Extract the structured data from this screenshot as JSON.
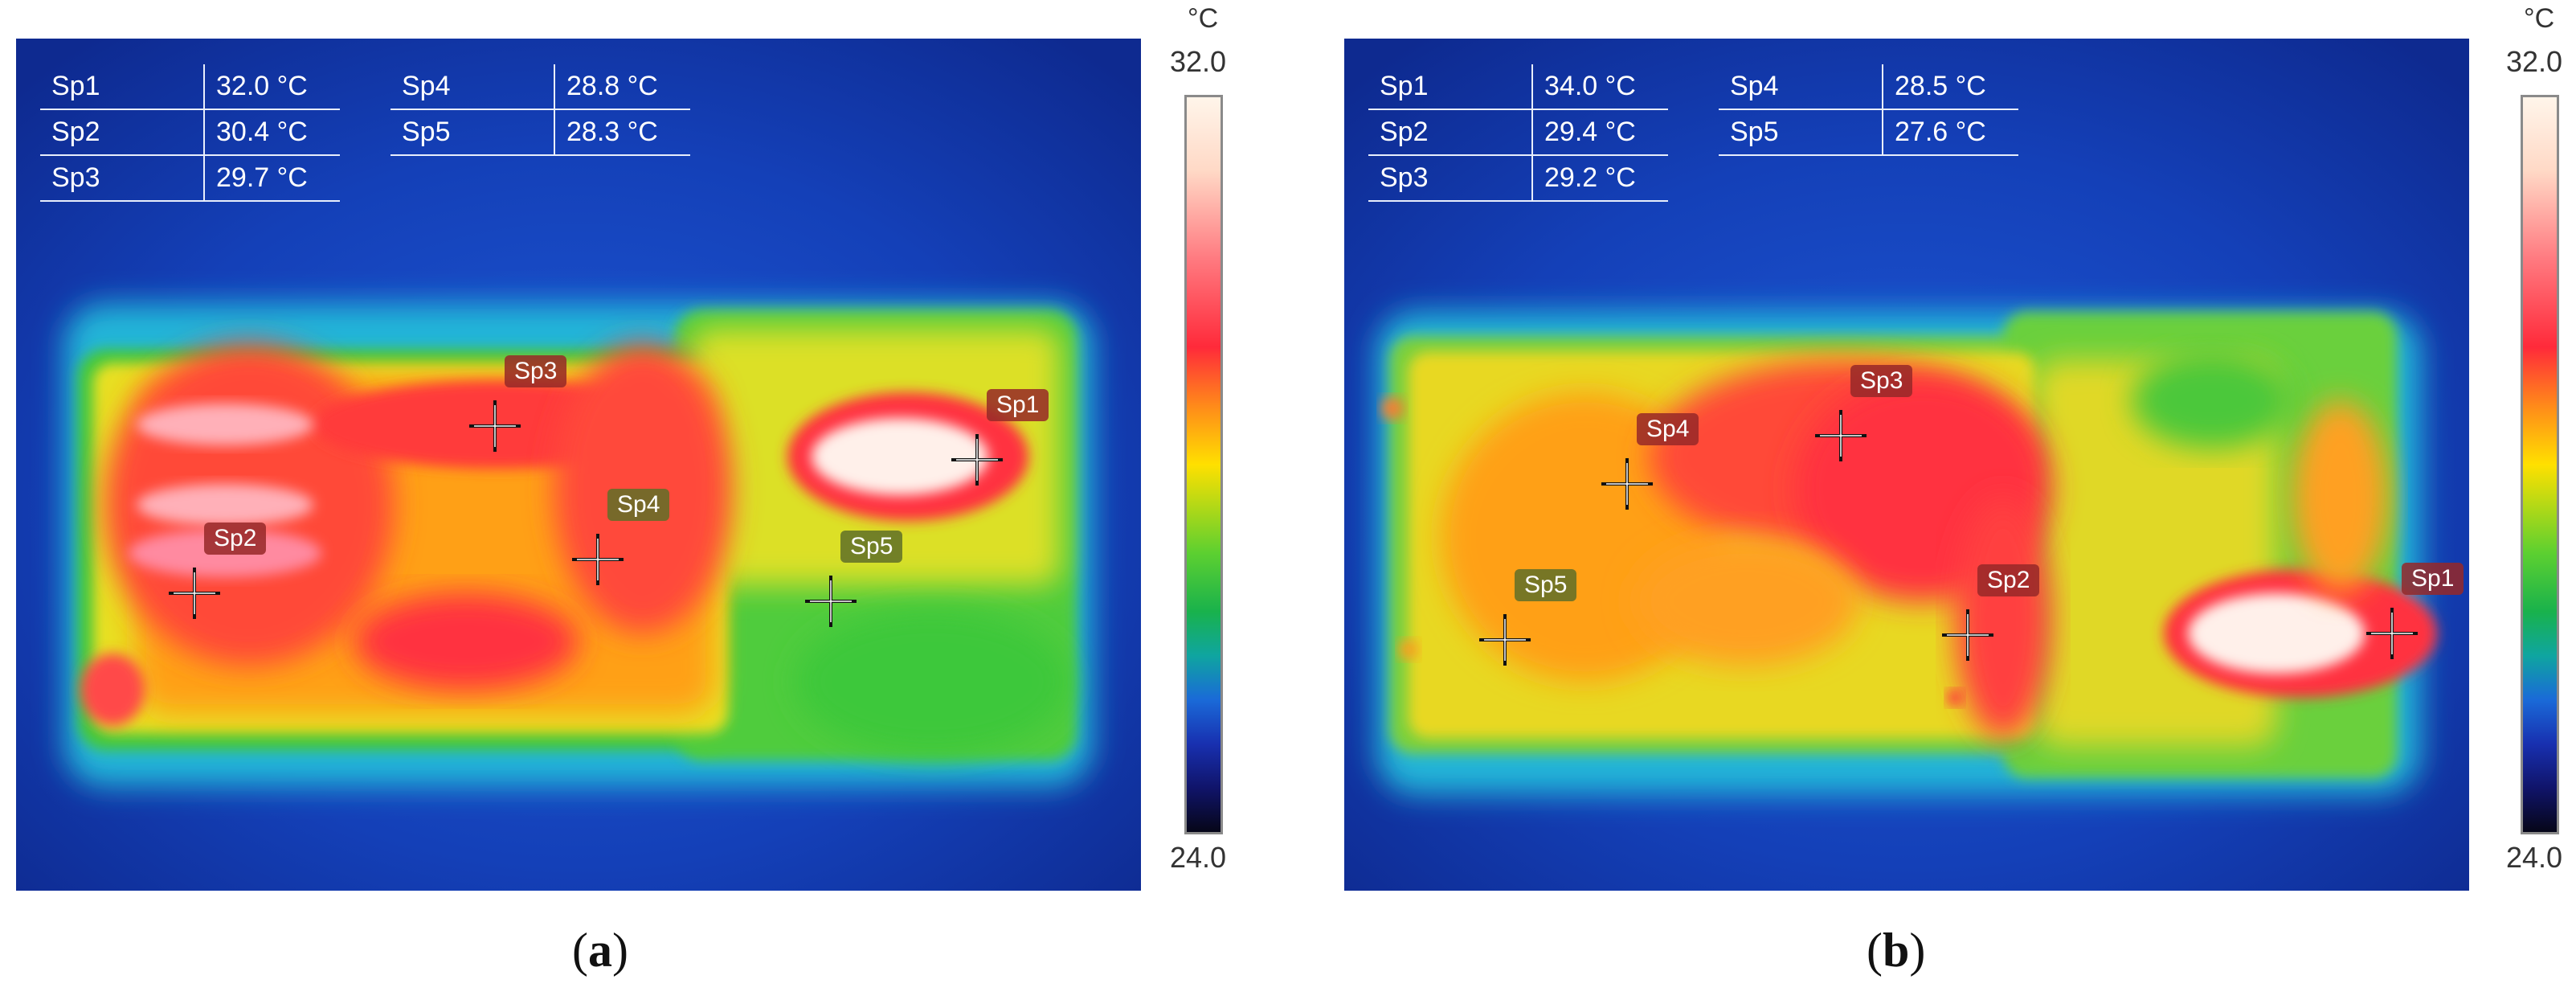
{
  "panels": [
    {
      "id": "a",
      "caption_letter": "a",
      "spots_left": [
        {
          "name": "Sp1",
          "value": "32.0 °C"
        },
        {
          "name": "Sp2",
          "value": "30.4 °C"
        },
        {
          "name": "Sp3",
          "value": "29.7 °C"
        }
      ],
      "spots_right": [
        {
          "name": "Sp4",
          "value": "28.8 °C"
        },
        {
          "name": "Sp5",
          "value": "28.3 °C"
        }
      ],
      "scale": {
        "unit": "°C",
        "max": "32.0",
        "min": "24.0"
      },
      "markers": [
        "Sp1",
        "Sp2",
        "Sp3",
        "Sp4",
        "Sp5"
      ]
    },
    {
      "id": "b",
      "caption_letter": "b",
      "spots_left": [
        {
          "name": "Sp1",
          "value": "34.0 °C"
        },
        {
          "name": "Sp2",
          "value": "29.4 °C"
        },
        {
          "name": "Sp3",
          "value": "29.2 °C"
        }
      ],
      "spots_right": [
        {
          "name": "Sp4",
          "value": "28.5 °C"
        },
        {
          "name": "Sp5",
          "value": "27.6 °C"
        }
      ],
      "scale": {
        "unit": "°C",
        "max": "32.0",
        "min": "24.0"
      },
      "markers": [
        "Sp1",
        "Sp2",
        "Sp3",
        "Sp4",
        "Sp5"
      ]
    }
  ],
  "colors": {
    "background_cold": "#10309c",
    "hot_white": "#fff3ea",
    "red": "#ff2a3a",
    "orange": "#ff8a1a",
    "yellow": "#ffe000",
    "green": "#3cc83c",
    "spot_label_bg": "#962828"
  }
}
